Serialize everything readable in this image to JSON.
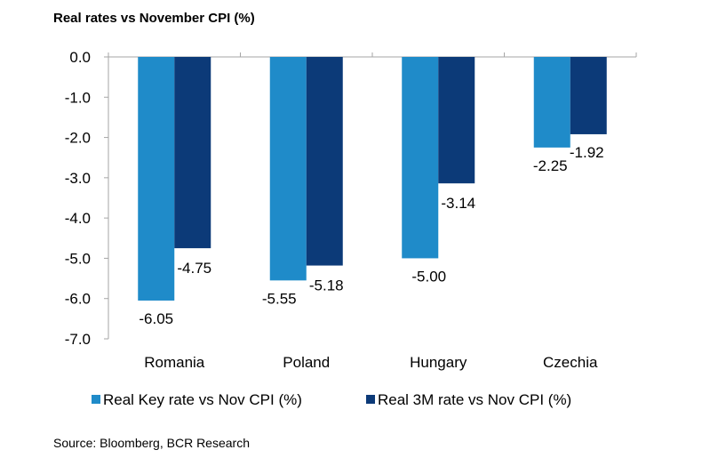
{
  "title": "Real rates vs November CPI (%)",
  "source": "Source: Bloomberg, BCR Research",
  "colors": {
    "series1": "#1f8bc9",
    "series2": "#0c3a78",
    "axis": "#a6a6a6"
  },
  "chart_data": {
    "type": "bar",
    "title": "Real rates vs November CPI (%)",
    "categories": [
      "Romania",
      "Poland",
      "Hungary",
      "Czechia"
    ],
    "series": [
      {
        "name": "Real Key rate vs Nov CPI (%)",
        "values": [
          -6.05,
          -5.55,
          -5.0,
          -2.25
        ],
        "labels": [
          "-6.05",
          "-5.55",
          "-5.00",
          "-2.25"
        ]
      },
      {
        "name": "Real 3M rate vs Nov CPI (%)",
        "values": [
          -4.75,
          -5.18,
          -3.14,
          -1.92
        ],
        "labels": [
          "-4.75",
          "-5.18",
          "-3.14",
          "-1.92"
        ]
      }
    ],
    "yticks": [
      "0.0",
      "-1.0",
      "-2.0",
      "-3.0",
      "-4.0",
      "-5.0",
      "-6.0",
      "-7.0"
    ],
    "ylim": [
      -7,
      0
    ],
    "grid": false,
    "legend_position": "bottom"
  }
}
